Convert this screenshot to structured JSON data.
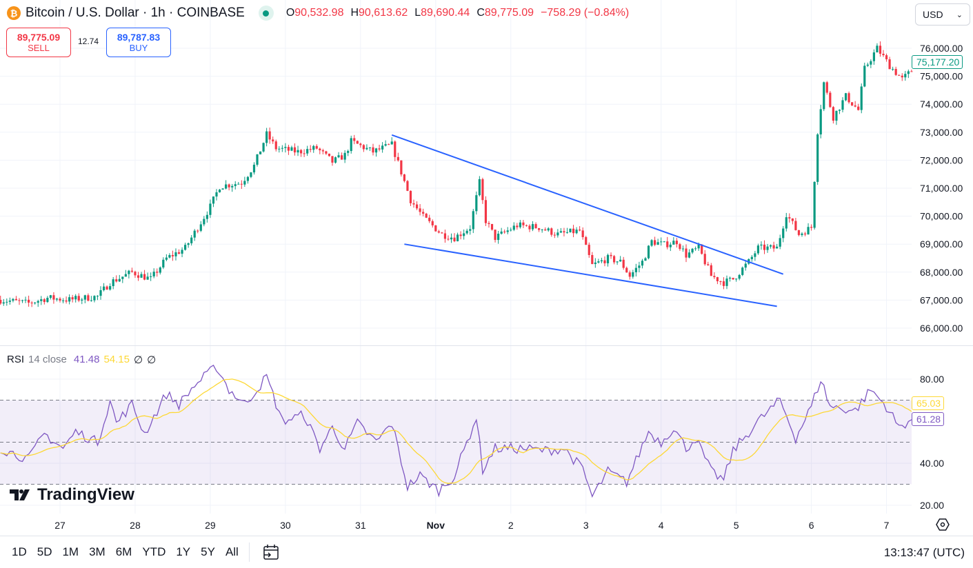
{
  "header": {
    "symbol_icon": "bitcoin-icon",
    "title": "Bitcoin / U.S. Dollar · 1h · COINBASE",
    "status": "market-open-dot",
    "ohlc": [
      {
        "k": "O",
        "v": "90,532.98"
      },
      {
        "k": "H",
        "v": "90,613.62"
      },
      {
        "k": "L",
        "v": "89,690.44"
      },
      {
        "k": "C",
        "v": "89,775.09"
      }
    ],
    "change": "−758.29 (−0.84%)"
  },
  "trade": {
    "sell_price": "89,775.09",
    "sell_label": "SELL",
    "spread": "12.74",
    "buy_price": "89,787.83",
    "buy_label": "BUY"
  },
  "currency": "USD",
  "rsi": {
    "label": "RSI",
    "params": "14 close",
    "value": "41.48",
    "ma_value": "54.15",
    "na1": "∅",
    "na2": "∅"
  },
  "logo": "TradingView",
  "toolbar": {
    "ranges": [
      "1D",
      "5D",
      "1M",
      "3M",
      "6M",
      "YTD",
      "1Y",
      "5Y",
      "All"
    ],
    "clock": "13:13:47 (UTC)"
  },
  "colors": {
    "up": "#089981",
    "down": "#f23645",
    "rsi": "#7e57c2",
    "rsi_ma": "#fdd835",
    "trendline": "#2962ff"
  },
  "chart_data": {
    "type": "candlestick",
    "interval": "1h",
    "year": 2024,
    "price_axis": {
      "ticks": [
        "66,000.00",
        "67,000.00",
        "68,000.00",
        "69,000.00",
        "70,000.00",
        "71,000.00",
        "72,000.00",
        "73,000.00",
        "74,000.00",
        "75,000.00",
        "76,000.00"
      ],
      "ylim": [
        65700,
        76900
      ]
    },
    "last_price_label": "75,177.20",
    "time_axis": {
      "ticks": [
        {
          "t": "10-27 00",
          "l": "27"
        },
        {
          "t": "10-28 00",
          "l": "28"
        },
        {
          "t": "10-29 00",
          "l": "29"
        },
        {
          "t": "10-30 00",
          "l": "30"
        },
        {
          "t": "10-31 00",
          "l": "31"
        },
        {
          "t": "11-01 00",
          "l": "Nov"
        },
        {
          "t": "11-02 00",
          "l": "2"
        },
        {
          "t": "11-03 00",
          "l": "3"
        },
        {
          "t": "11-04 00",
          "l": "4"
        },
        {
          "t": "11-05 00",
          "l": "5"
        },
        {
          "t": "11-06 00",
          "l": "6"
        },
        {
          "t": "11-07 00",
          "l": "7"
        }
      ]
    },
    "close_path": [
      [
        "10-26 05",
        67010
      ],
      [
        "10-26 14",
        66890
      ],
      [
        "10-26 20",
        67080
      ],
      [
        "10-27 03",
        67010
      ],
      [
        "10-27 12",
        67130
      ],
      [
        "10-27 16",
        67630
      ],
      [
        "10-27 23",
        68000
      ],
      [
        "10-28 05",
        67750
      ],
      [
        "10-28 10",
        68490
      ],
      [
        "10-28 16",
        68860
      ],
      [
        "10-28 20",
        69600
      ],
      [
        "10-29 00",
        70340
      ],
      [
        "10-29 03",
        71070
      ],
      [
        "10-29 10",
        71200
      ],
      [
        "10-29 14",
        71800
      ],
      [
        "10-29 18",
        72920
      ],
      [
        "10-29 21",
        72430
      ],
      [
        "10-30 04",
        72300
      ],
      [
        "10-30 10",
        72430
      ],
      [
        "10-30 15",
        71940
      ],
      [
        "10-30 19",
        72180
      ],
      [
        "10-30 21",
        72670
      ],
      [
        "10-31 04",
        72300
      ],
      [
        "10-31 10",
        72550
      ],
      [
        "10-31 13",
        71570
      ],
      [
        "10-31 16",
        70580
      ],
      [
        "10-31 20",
        69970
      ],
      [
        "11-01 02",
        69350
      ],
      [
        "11-01 06",
        69230
      ],
      [
        "11-01 11",
        69600
      ],
      [
        "11-01 14",
        71200
      ],
      [
        "11-01 16",
        69840
      ],
      [
        "11-01 19",
        69230
      ],
      [
        "11-02 02",
        69670
      ],
      [
        "11-02 09",
        69600
      ],
      [
        "11-02 15",
        69350
      ],
      [
        "11-02 22",
        69480
      ],
      [
        "11-03 02",
        68240
      ],
      [
        "11-03 07",
        68490
      ],
      [
        "11-03 11",
        68370
      ],
      [
        "11-03 14",
        67870
      ],
      [
        "11-03 18",
        68370
      ],
      [
        "11-03 21",
        69100
      ],
      [
        "11-04 01",
        68980
      ],
      [
        "11-04 05",
        69100
      ],
      [
        "11-04 08",
        68610
      ],
      [
        "11-04 12",
        68860
      ],
      [
        "11-04 16",
        67870
      ],
      [
        "11-04 20",
        67630
      ],
      [
        "11-04 23",
        67750
      ],
      [
        "11-05 04",
        68370
      ],
      [
        "11-05 07",
        68860
      ],
      [
        "11-05 13",
        68860
      ],
      [
        "11-05 16",
        70090
      ],
      [
        "11-05 20",
        69350
      ],
      [
        "11-06 00",
        69600
      ],
      [
        "11-06 02",
        73040
      ],
      [
        "11-06 04",
        74770
      ],
      [
        "11-06 07",
        73540
      ],
      [
        "11-06 11",
        74280
      ],
      [
        "11-06 15",
        73790
      ],
      [
        "11-06 17",
        75260
      ],
      [
        "11-06 21",
        76000
      ],
      [
        "11-07 01",
        75380
      ],
      [
        "11-07 05",
        74890
      ],
      [
        "11-07 08",
        75190
      ]
    ],
    "trendlines": [
      {
        "from": [
          "10-31 10",
          72900
        ],
        "to": [
          "11-05 15",
          67930
        ]
      },
      {
        "from": [
          "10-31 14",
          69000
        ],
        "to": [
          "11-05 13",
          66780
        ]
      }
    ],
    "rsi_pane": {
      "ticks": [
        "20.00",
        "40.00",
        "80.00"
      ],
      "ylim": [
        16,
        90
      ],
      "bands": [
        70,
        50,
        30
      ],
      "last_rsi_label": "61.28",
      "last_ma_label": "65.03",
      "rsi_path": [
        [
          "10-26 05",
          47
        ],
        [
          "10-26 14",
          42
        ],
        [
          "10-26 19",
          54
        ],
        [
          "10-27 01",
          47
        ],
        [
          "10-27 05",
          55
        ],
        [
          "10-27 12",
          50
        ],
        [
          "10-27 16",
          70
        ],
        [
          "10-27 18",
          59
        ],
        [
          "10-27 23",
          68
        ],
        [
          "10-28 03",
          54
        ],
        [
          "10-28 10",
          73
        ],
        [
          "10-28 14",
          68
        ],
        [
          "10-28 19",
          77
        ],
        [
          "10-29 02",
          86
        ],
        [
          "10-29 06",
          75
        ],
        [
          "10-29 11",
          68
        ],
        [
          "10-29 18",
          81
        ],
        [
          "10-29 23",
          60
        ],
        [
          "10-30 06",
          63
        ],
        [
          "10-30 11",
          47
        ],
        [
          "10-30 15",
          57
        ],
        [
          "10-30 19",
          47
        ],
        [
          "10-30 23",
          59
        ],
        [
          "10-31 05",
          50
        ],
        [
          "10-31 10",
          59
        ],
        [
          "10-31 15",
          29
        ],
        [
          "10-31 19",
          34
        ],
        [
          "11-01 01",
          27
        ],
        [
          "11-01 06",
          34
        ],
        [
          "11-01 13",
          62
        ],
        [
          "11-01 15",
          37
        ],
        [
          "11-01 19",
          47
        ],
        [
          "11-02 04",
          47
        ],
        [
          "11-02 11",
          46
        ],
        [
          "11-02 17",
          47
        ],
        [
          "11-02 23",
          37
        ],
        [
          "11-03 02",
          24
        ],
        [
          "11-03 07",
          36
        ],
        [
          "11-03 13",
          31
        ],
        [
          "11-03 20",
          55
        ],
        [
          "11-04 00",
          50
        ],
        [
          "11-04 04",
          57
        ],
        [
          "11-04 08",
          47
        ],
        [
          "11-04 11",
          52
        ],
        [
          "11-04 16",
          36
        ],
        [
          "11-04 20",
          32
        ],
        [
          "11-04 23",
          46
        ],
        [
          "11-05 07",
          60
        ],
        [
          "11-05 14",
          70
        ],
        [
          "11-05 19",
          52
        ],
        [
          "11-06 00",
          67
        ],
        [
          "11-06 03",
          80
        ],
        [
          "11-06 06",
          67
        ],
        [
          "11-06 14",
          65
        ],
        [
          "11-06 19",
          75
        ],
        [
          "11-07 00",
          67
        ],
        [
          "11-07 04",
          57
        ],
        [
          "11-07 08",
          61
        ]
      ]
    }
  }
}
